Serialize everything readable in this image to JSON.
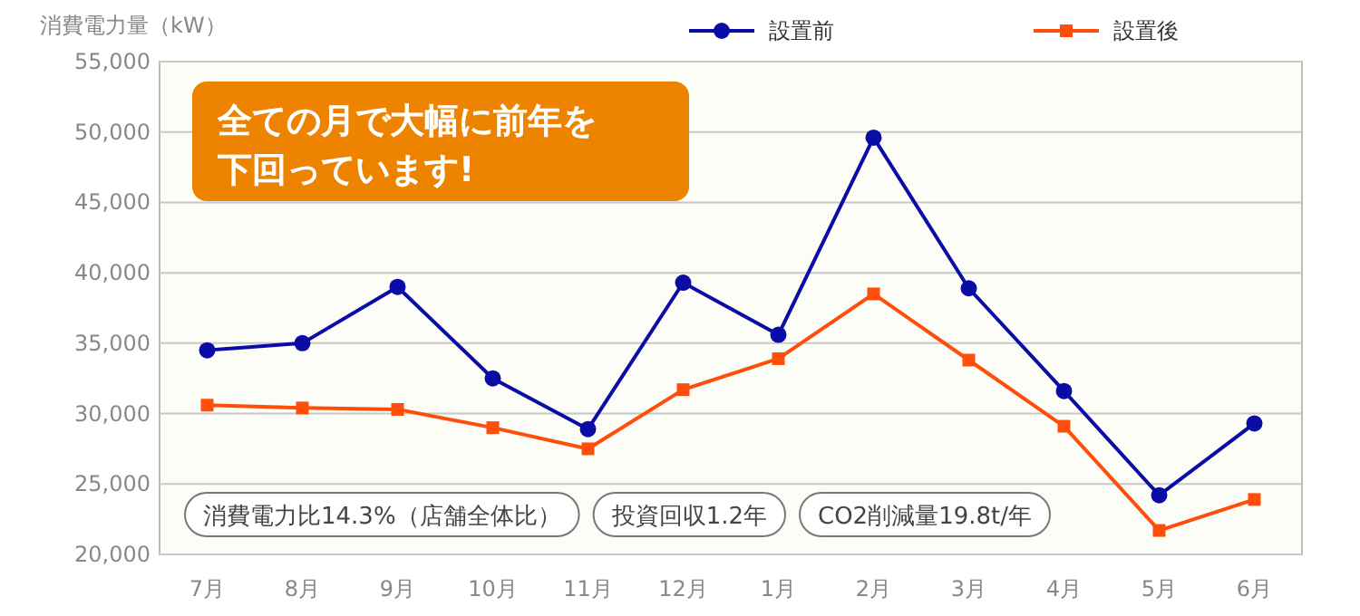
{
  "chart_data": {
    "type": "line",
    "ylabel": "消費電力量（kW）",
    "categories": [
      "7月",
      "8月",
      "9月",
      "10月",
      "11月",
      "12月",
      "1月",
      "2月",
      "3月",
      "4月",
      "5月",
      "6月"
    ],
    "series": [
      {
        "name": "設置前",
        "color": "#0b0ba6",
        "marker": "circle",
        "values": [
          34500,
          35000,
          39000,
          32500,
          28900,
          39300,
          35600,
          49600,
          38900,
          31600,
          24200,
          29300
        ]
      },
      {
        "name": "設置後",
        "color": "#ff4d0a",
        "marker": "square",
        "values": [
          30600,
          30400,
          30300,
          29000,
          27500,
          31700,
          33900,
          38500,
          33800,
          29100,
          21700,
          23900
        ]
      }
    ],
    "ylim": [
      20000,
      55000
    ],
    "yticks": [
      {
        "value": 20000,
        "label": "20,000"
      },
      {
        "value": 25000,
        "label": "25,000"
      },
      {
        "value": 30000,
        "label": "30,000"
      },
      {
        "value": 35000,
        "label": "35,000"
      },
      {
        "value": 40000,
        "label": "40,000"
      },
      {
        "value": 45000,
        "label": "45,000"
      },
      {
        "value": 50000,
        "label": "50,000"
      },
      {
        "value": 55000,
        "label": "55,000"
      }
    ],
    "grid": "y",
    "legend": "top right",
    "line_style": "solid",
    "annotations": [
      "全ての月で大幅に前年を",
      "下回っています!",
      "消費電力比14.3%（店舗全体比）",
      "投資回収1.2年",
      "CO2削減量19.8t/年"
    ]
  }
}
